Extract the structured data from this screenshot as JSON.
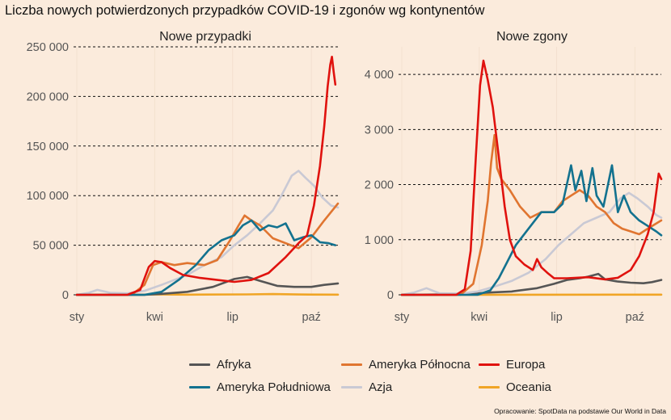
{
  "title": "Liczba nowych potwierdzonych przypadków COVID-19 i zgonów wg kontynentów",
  "source": "Opracowanie: SpotData na podstawie Our World in Data",
  "colors": {
    "Afryka": "#555555",
    "Ameryka Północna": "#e07530",
    "Europa": "#e0120e",
    "Ameryka Południowa": "#13728f",
    "Azja": "#c9c9d4",
    "Oceania": "#f0a526"
  },
  "legend": {
    "items": [
      {
        "label": "Afryka",
        "color": "#555555"
      },
      {
        "label": "Ameryka Północna",
        "color": "#e07530"
      },
      {
        "label": "Europa",
        "color": "#e0120e"
      },
      {
        "label": "Ameryka Południowa",
        "color": "#13728f"
      },
      {
        "label": "Azja",
        "color": "#c9c9d4"
      },
      {
        "label": "Oceania",
        "color": "#f0a526"
      }
    ]
  },
  "chart_data": [
    {
      "type": "line",
      "title": "Nowe przypadki",
      "x_ticks": [
        "sty",
        "kwi",
        "lip",
        "paź"
      ],
      "x_tick_days": [
        1,
        92,
        183,
        275
      ],
      "xlim": [
        1,
        306
      ],
      "ylim": [
        0,
        250000
      ],
      "y_ticks": [
        0,
        50000,
        100000,
        150000,
        200000,
        250000
      ],
      "y_tick_labels": [
        "0",
        "50 000",
        "100 000",
        "150 000",
        "200 000",
        "250 000"
      ],
      "grid": "horizontal-dashed",
      "series": [
        {
          "name": "Afryka",
          "points": [
            [
              1,
              0
            ],
            [
              80,
              0
            ],
            [
              100,
              1000
            ],
            [
              130,
              3000
            ],
            [
              160,
              8000
            ],
            [
              185,
              16000
            ],
            [
              200,
              18000
            ],
            [
              215,
              14000
            ],
            [
              235,
              9000
            ],
            [
              255,
              8000
            ],
            [
              275,
              8000
            ],
            [
              290,
              10000
            ],
            [
              306,
              11500
            ]
          ]
        },
        {
          "name": "Ameryka Północna",
          "points": [
            [
              1,
              0
            ],
            [
              65,
              0
            ],
            [
              80,
              10000
            ],
            [
              90,
              30000
            ],
            [
              100,
              33000
            ],
            [
              115,
              30000
            ],
            [
              130,
              32000
            ],
            [
              150,
              30000
            ],
            [
              165,
              35000
            ],
            [
              180,
              55000
            ],
            [
              190,
              70000
            ],
            [
              197,
              80000
            ],
            [
              205,
              75000
            ],
            [
              215,
              70000
            ],
            [
              230,
              57000
            ],
            [
              245,
              52000
            ],
            [
              260,
              47000
            ],
            [
              275,
              58000
            ],
            [
              290,
              75000
            ],
            [
              306,
              92000
            ]
          ]
        },
        {
          "name": "Europa",
          "points": [
            [
              1,
              0
            ],
            [
              60,
              0
            ],
            [
              75,
              5000
            ],
            [
              85,
              28000
            ],
            [
              92,
              34000
            ],
            [
              100,
              33000
            ],
            [
              110,
              27000
            ],
            [
              125,
              20000
            ],
            [
              145,
              17000
            ],
            [
              165,
              15000
            ],
            [
              185,
              13000
            ],
            [
              205,
              15000
            ],
            [
              225,
              22000
            ],
            [
              245,
              38000
            ],
            [
              260,
              52000
            ],
            [
              270,
              60000
            ],
            [
              278,
              90000
            ],
            [
              285,
              130000
            ],
            [
              290,
              170000
            ],
            [
              294,
              210000
            ],
            [
              297,
              232000
            ],
            [
              299,
              240000
            ],
            [
              301,
              225000
            ],
            [
              303,
              212000
            ]
          ]
        },
        {
          "name": "Ameryka Południowa",
          "points": [
            [
              1,
              0
            ],
            [
              80,
              0
            ],
            [
              100,
              3000
            ],
            [
              120,
              15000
            ],
            [
              140,
              30000
            ],
            [
              155,
              45000
            ],
            [
              170,
              55000
            ],
            [
              185,
              60000
            ],
            [
              195,
              70000
            ],
            [
              205,
              75000
            ],
            [
              215,
              65000
            ],
            [
              225,
              70000
            ],
            [
              235,
              68000
            ],
            [
              245,
              72000
            ],
            [
              255,
              55000
            ],
            [
              265,
              58000
            ],
            [
              275,
              60000
            ],
            [
              285,
              53000
            ],
            [
              295,
              52000
            ],
            [
              303,
              50000
            ]
          ]
        },
        {
          "name": "Azja",
          "points": [
            [
              1,
              0
            ],
            [
              15,
              2000
            ],
            [
              25,
              5000
            ],
            [
              40,
              2000
            ],
            [
              60,
              1500
            ],
            [
              80,
              4000
            ],
            [
              100,
              10000
            ],
            [
              130,
              20000
            ],
            [
              150,
              30000
            ],
            [
              170,
              38000
            ],
            [
              185,
              50000
            ],
            [
              200,
              60000
            ],
            [
              215,
              72000
            ],
            [
              230,
              85000
            ],
            [
              240,
              100000
            ],
            [
              252,
              120000
            ],
            [
              260,
              125000
            ],
            [
              268,
              118000
            ],
            [
              278,
              110000
            ],
            [
              288,
              98000
            ],
            [
              298,
              90000
            ],
            [
              306,
              88000
            ]
          ]
        },
        {
          "name": "Oceania",
          "points": [
            [
              1,
              0
            ],
            [
              80,
              200
            ],
            [
              90,
              500
            ],
            [
              130,
              200
            ],
            [
              200,
              400
            ],
            [
              230,
              700
            ],
            [
              260,
              300
            ],
            [
              306,
              200
            ]
          ]
        }
      ]
    },
    {
      "type": "line",
      "title": "Nowe zgony",
      "x_ticks": [
        "sty",
        "kwi",
        "lip",
        "paź"
      ],
      "x_tick_days": [
        1,
        92,
        183,
        275
      ],
      "xlim": [
        1,
        306
      ],
      "ylim": [
        0,
        4500
      ],
      "y_ticks": [
        0,
        1000,
        2000,
        3000,
        4000
      ],
      "y_tick_labels": [
        "0",
        "1 000",
        "2 000",
        "3 000",
        "4 000"
      ],
      "grid": "horizontal-dashed",
      "series": [
        {
          "name": "Afryka",
          "points": [
            [
              1,
              0
            ],
            [
              80,
              10
            ],
            [
              100,
              40
            ],
            [
              130,
              60
            ],
            [
              160,
              120
            ],
            [
              180,
              200
            ],
            [
              195,
              270
            ],
            [
              210,
              300
            ],
            [
              220,
              330
            ],
            [
              232,
              380
            ],
            [
              240,
              280
            ],
            [
              255,
              240
            ],
            [
              270,
              220
            ],
            [
              285,
              210
            ],
            [
              295,
              230
            ],
            [
              306,
              270
            ]
          ]
        },
        {
          "name": "Ameryka Północna",
          "points": [
            [
              1,
              0
            ],
            [
              70,
              0
            ],
            [
              85,
              200
            ],
            [
              95,
              900
            ],
            [
              102,
              1700
            ],
            [
              106,
              2400
            ],
            [
              110,
              2900
            ],
            [
              113,
              2300
            ],
            [
              118,
              2100
            ],
            [
              128,
              1900
            ],
            [
              140,
              1600
            ],
            [
              152,
              1400
            ],
            [
              165,
              1500
            ],
            [
              180,
              1500
            ],
            [
              190,
              1700
            ],
            [
              200,
              1800
            ],
            [
              210,
              1900
            ],
            [
              220,
              1800
            ],
            [
              230,
              1600
            ],
            [
              240,
              1500
            ],
            [
              250,
              1300
            ],
            [
              260,
              1200
            ],
            [
              270,
              1150
            ],
            [
              280,
              1100
            ],
            [
              290,
              1200
            ],
            [
              306,
              1350
            ]
          ]
        },
        {
          "name": "Europa",
          "points": [
            [
              1,
              0
            ],
            [
              65,
              0
            ],
            [
              75,
              100
            ],
            [
              82,
              800
            ],
            [
              88,
              2500
            ],
            [
              93,
              3800
            ],
            [
              97,
              4250
            ],
            [
              102,
              3900
            ],
            [
              108,
              3400
            ],
            [
              115,
              2500
            ],
            [
              122,
              1600
            ],
            [
              128,
              1000
            ],
            [
              135,
              700
            ],
            [
              145,
              550
            ],
            [
              155,
              450
            ],
            [
              160,
              650
            ],
            [
              165,
              500
            ],
            [
              172,
              400
            ],
            [
              180,
              300
            ],
            [
              195,
              300
            ],
            [
              220,
              320
            ],
            [
              240,
              280
            ],
            [
              255,
              310
            ],
            [
              270,
              450
            ],
            [
              280,
              700
            ],
            [
              290,
              1100
            ],
            [
              297,
              1500
            ],
            [
              303,
              2200
            ],
            [
              306,
              2100
            ]
          ]
        },
        {
          "name": "Ameryka Południowa",
          "points": [
            [
              1,
              0
            ],
            [
              90,
              0
            ],
            [
              105,
              80
            ],
            [
              115,
              300
            ],
            [
              125,
              600
            ],
            [
              135,
              900
            ],
            [
              150,
              1200
            ],
            [
              165,
              1500
            ],
            [
              180,
              1500
            ],
            [
              190,
              1650
            ],
            [
              200,
              2350
            ],
            [
              205,
              1900
            ],
            [
              212,
              2250
            ],
            [
              218,
              1700
            ],
            [
              225,
              2300
            ],
            [
              230,
              1800
            ],
            [
              238,
              1600
            ],
            [
              248,
              2350
            ],
            [
              255,
              1500
            ],
            [
              262,
              1800
            ],
            [
              270,
              1500
            ],
            [
              280,
              1350
            ],
            [
              290,
              1250
            ],
            [
              300,
              1150
            ],
            [
              306,
              1080
            ]
          ]
        },
        {
          "name": "Azja",
          "points": [
            [
              1,
              0
            ],
            [
              15,
              40
            ],
            [
              30,
              120
            ],
            [
              45,
              30
            ],
            [
              70,
              20
            ],
            [
              90,
              60
            ],
            [
              110,
              150
            ],
            [
              130,
              250
            ],
            [
              150,
              400
            ],
            [
              170,
              650
            ],
            [
              185,
              900
            ],
            [
              200,
              1100
            ],
            [
              215,
              1300
            ],
            [
              230,
              1400
            ],
            [
              245,
              1500
            ],
            [
              258,
              1750
            ],
            [
              268,
              1850
            ],
            [
              278,
              1750
            ],
            [
              290,
              1600
            ],
            [
              300,
              1450
            ],
            [
              306,
              1400
            ]
          ]
        },
        {
          "name": "Oceania",
          "points": [
            [
              1,
              0
            ],
            [
              306,
              3
            ]
          ]
        }
      ]
    }
  ]
}
